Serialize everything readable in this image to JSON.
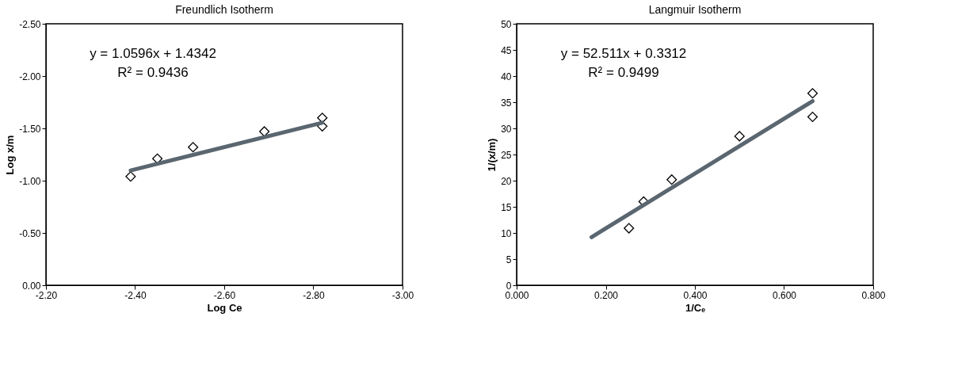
{
  "chart_data": [
    {
      "type": "scatter",
      "title": "Freundlich Isotherm",
      "xlabel": "Log Ce",
      "ylabel": "Log x/m",
      "x": [
        -2.39,
        -2.45,
        -2.53,
        -2.69,
        -2.82,
        -2.82
      ],
      "series": [
        {
          "color": "#000000",
          "marker": "diamond",
          "values": [
            -1.04,
            -1.21,
            -1.32,
            -1.47,
            -1.6,
            -1.52
          ]
        },
        {
          "type": "line",
          "color": "#5a6670",
          "marker": "none",
          "x": [
            -2.39,
            -2.82
          ],
          "values": [
            -1.098,
            -1.554
          ]
        }
      ],
      "xlim": [
        -2.2,
        -3.0
      ],
      "xticks": [
        {
          "value": -2.2,
          "label": "-2.20"
        },
        {
          "value": -2.4,
          "label": "-2.40"
        },
        {
          "value": -2.6,
          "label": "-2.60"
        },
        {
          "value": -2.8,
          "label": "-2.80"
        },
        {
          "value": -3.0,
          "label": "-3.00"
        }
      ],
      "ylim": [
        0,
        -2.5
      ],
      "yticks": [
        {
          "value": 0,
          "label": "0.00"
        },
        {
          "value": -0.5,
          "label": "-0.50"
        },
        {
          "value": -1.0,
          "label": "-1.00"
        },
        {
          "value": -1.5,
          "label": "-1.50"
        },
        {
          "value": -2.0,
          "label": "-2.00"
        },
        {
          "value": -2.5,
          "label": "-2.50"
        }
      ],
      "annotations": [
        "y = 1.0596x + 1.4342",
        "R² = 0.9436"
      ],
      "grid": false
    },
    {
      "type": "scatter",
      "title": "Langmuir Isotherm",
      "xlabel": "1/Cₑ",
      "ylabel": "1/(x/m)",
      "x": [
        0.252,
        0.285,
        0.348,
        0.5,
        0.664,
        0.664
      ],
      "series": [
        {
          "color": "#000000",
          "marker": "diamond",
          "values": [
            10.9,
            16.0,
            20.2,
            28.5,
            36.7,
            32.2
          ]
        },
        {
          "type": "line",
          "color": "#5a6670",
          "marker": "none",
          "x": [
            0.168,
            0.664
          ],
          "values": [
            9.2,
            35.2
          ]
        }
      ],
      "xlim": [
        0,
        0.8
      ],
      "xticks": [
        {
          "value": 0,
          "label": "0.000"
        },
        {
          "value": 0.2,
          "label": "0.200"
        },
        {
          "value": 0.4,
          "label": "0.400"
        },
        {
          "value": 0.6,
          "label": "0.600"
        },
        {
          "value": 0.8,
          "label": "0.800"
        }
      ],
      "ylim": [
        0,
        50
      ],
      "yticks": [
        0,
        5,
        10,
        15,
        20,
        25,
        30,
        35,
        40,
        45,
        50
      ],
      "annotations": [
        "y = 52.511x + 0.3312",
        "R² = 0.9499"
      ],
      "grid": false
    }
  ]
}
